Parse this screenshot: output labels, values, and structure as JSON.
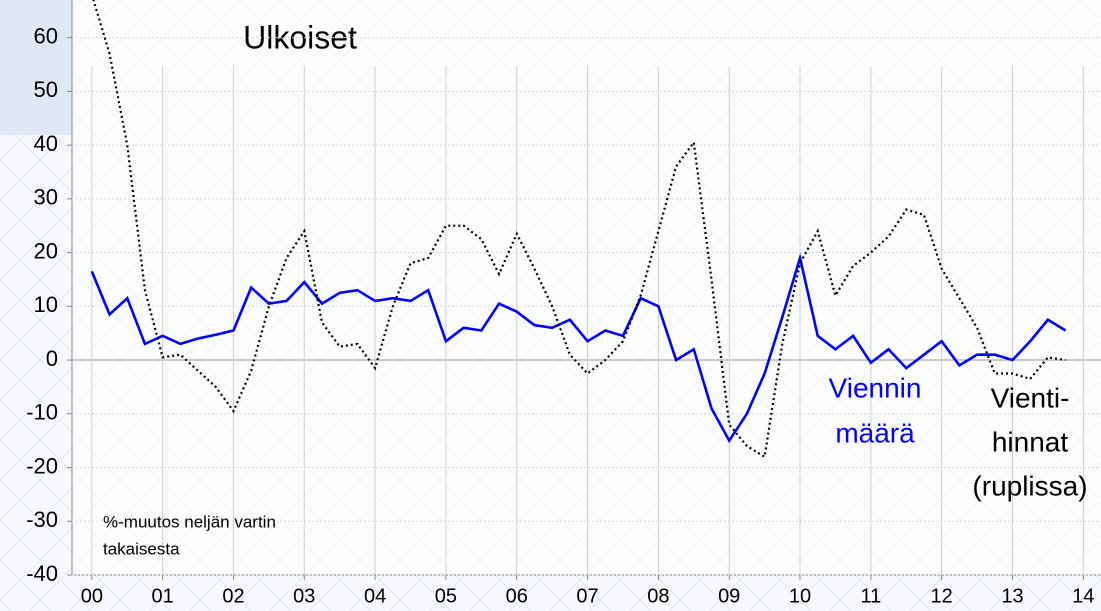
{
  "chart_data": {
    "type": "line",
    "title": "Ulkoiset",
    "annotations": [
      {
        "lines": [
          "Viennin",
          "määrä"
        ],
        "color": "#0000ff"
      },
      {
        "lines": [
          "Vienti-",
          "hinnat",
          "(ruplissa)"
        ],
        "color": "#000000"
      },
      {
        "lines": [
          "%-muutos neljän vartin",
          "takaisesta"
        ],
        "color": "#000000"
      }
    ],
    "x": [
      0,
      0.25,
      0.5,
      0.75,
      1,
      1.25,
      1.5,
      1.75,
      2,
      2.25,
      2.5,
      2.75,
      3,
      3.25,
      3.5,
      3.75,
      4,
      4.25,
      4.5,
      4.75,
      5,
      5.25,
      5.5,
      5.75,
      6,
      6.25,
      6.5,
      6.75,
      7,
      7.25,
      7.5,
      7.75,
      8,
      8.25,
      8.5,
      8.75,
      9,
      9.25,
      9.5,
      9.75,
      10,
      10.25,
      10.5,
      10.75,
      11,
      11.25,
      11.5,
      11.75,
      12,
      12.25,
      12.5,
      12.75,
      13,
      13.25,
      13.5,
      13.75
    ],
    "series": [
      {
        "name": "Viennin määrä",
        "color": "#0000ff",
        "dash": "solid",
        "values": [
          16.5,
          8.5,
          11.5,
          3,
          4.5,
          3,
          4,
          4.7,
          5.5,
          13.5,
          10.5,
          11,
          14.5,
          10.5,
          12.5,
          13,
          11,
          11.5,
          11,
          13,
          3.5,
          6,
          5.5,
          10.5,
          9,
          6.5,
          6,
          7.5,
          3.5,
          5.5,
          4.5,
          11.5,
          10,
          0,
          2,
          -9,
          -15,
          -10,
          -2.5,
          8,
          19,
          4.5,
          2,
          4.5,
          -0.5,
          2,
          -1.5,
          1,
          3.5,
          -1,
          1,
          1,
          0,
          3.5,
          7.5,
          5.5
        ]
      },
      {
        "name": "Vientihinnat (ruplissa)",
        "color": "#000000",
        "dash": "dotted",
        "values": [
          68,
          57,
          40,
          13,
          0.5,
          1,
          -2,
          -5,
          -9.5,
          -2,
          10,
          19,
          24,
          7,
          2.5,
          3,
          -1.5,
          10,
          18,
          19,
          25,
          25,
          22.5,
          16,
          23.5,
          17,
          10,
          1,
          -2.5,
          0,
          3.5,
          12,
          24,
          36,
          40.5,
          15,
          -12,
          -16,
          -18,
          3,
          18,
          24,
          12,
          17.5,
          20,
          23,
          28,
          27,
          17,
          11.5,
          6,
          -2.5,
          -2.5,
          -3.5,
          0.5,
          0
        ]
      }
    ],
    "xlim": [
      -0.28,
      14.25
    ],
    "xticks": [
      {
        "value": 0,
        "label": "00"
      },
      {
        "value": 1,
        "label": "01"
      },
      {
        "value": 2,
        "label": "02"
      },
      {
        "value": 3,
        "label": "03"
      },
      {
        "value": 4,
        "label": "04"
      },
      {
        "value": 5,
        "label": "05"
      },
      {
        "value": 6,
        "label": "06"
      },
      {
        "value": 7,
        "label": "07"
      },
      {
        "value": 8,
        "label": "08"
      },
      {
        "value": 9,
        "label": "09"
      },
      10,
      11,
      12,
      13,
      14
    ],
    "ylim": [
      -40,
      67
    ],
    "yticks": [
      -40,
      -30,
      -20,
      -10,
      0,
      10,
      20,
      30,
      40,
      50,
      60
    ],
    "grid": true
  }
}
